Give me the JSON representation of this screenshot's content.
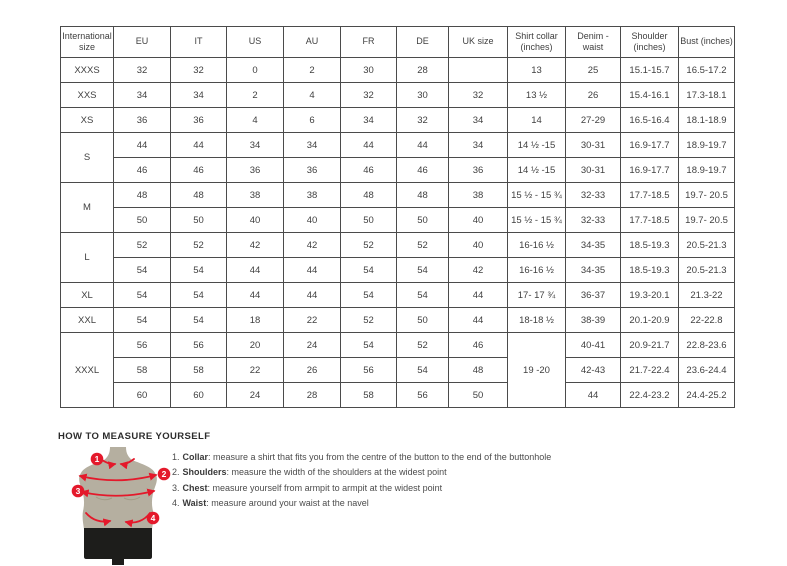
{
  "table": {
    "columns": [
      "International size",
      "EU",
      "IT",
      "US",
      "AU",
      "FR",
      "DE",
      "UK size",
      "Shirt collar (inches)",
      "Denim - waist",
      "Shoulder (inches)",
      "Bust (inches)"
    ],
    "rows": [
      [
        "XXXS",
        "32",
        "32",
        "0",
        "2",
        "30",
        "28",
        "",
        "13",
        "25",
        "15.1-15.7",
        "16.5-17.2"
      ],
      [
        "XXS",
        "34",
        "34",
        "2",
        "4",
        "32",
        "30",
        "32",
        "13 ½",
        "26",
        "15.4-16.1",
        "17.3-18.1"
      ],
      [
        "XS",
        "36",
        "36",
        "4",
        "6",
        "34",
        "32",
        "34",
        "14",
        "27-29",
        "16.5-16.4",
        "18.1-18.9"
      ],
      [
        {
          "t": "S",
          "rs": 2
        },
        "44",
        "44",
        "34",
        "34",
        "44",
        "44",
        "34",
        "14 ½ -15",
        "30-31",
        "16.9-17.7",
        "18.9-19.7"
      ],
      [
        "46",
        "46",
        "36",
        "36",
        "46",
        "46",
        "36",
        "14 ½ -15",
        "30-31",
        "16.9-17.7",
        "18.9-19.7"
      ],
      [
        {
          "t": "M",
          "rs": 2
        },
        "48",
        "48",
        "38",
        "38",
        "48",
        "48",
        "38",
        "15 ½ - 15 ¾",
        "32-33",
        "17.7-18.5",
        "19.7- 20.5"
      ],
      [
        "50",
        "50",
        "40",
        "40",
        "50",
        "50",
        "40",
        "15 ½ - 15 ¾",
        "32-33",
        "17.7-18.5",
        "19.7- 20.5"
      ],
      [
        {
          "t": "L",
          "rs": 2
        },
        "52",
        "52",
        "42",
        "42",
        "52",
        "52",
        "40",
        "16-16 ½",
        "34-35",
        "18.5-19.3",
        "20.5-21.3"
      ],
      [
        "54",
        "54",
        "44",
        "44",
        "54",
        "54",
        "42",
        "16-16 ½",
        "34-35",
        "18.5-19.3",
        "20.5-21.3"
      ],
      [
        "XL",
        "54",
        "54",
        "44",
        "44",
        "54",
        "54",
        "44",
        "17- 17 ¾",
        "36-37",
        "19.3-20.1",
        "21.3-22"
      ],
      [
        "XXL",
        "54",
        "54",
        "18",
        "22",
        "52",
        "50",
        "44",
        "18-18 ½",
        "38-39",
        "20.1-20.9",
        "22-22.8"
      ],
      [
        {
          "t": "XXXL",
          "rs": 3
        },
        "56",
        "56",
        "20",
        "24",
        "54",
        "52",
        "46",
        {
          "t": "19 -20",
          "rs": 3
        },
        "40-41",
        "20.9-21.7",
        "22.8-23.6"
      ],
      [
        "58",
        "58",
        "22",
        "26",
        "56",
        "54",
        "48",
        "42-43",
        "21.7-22.4",
        "23.6-24.4"
      ],
      [
        "60",
        "60",
        "24",
        "28",
        "58",
        "56",
        "50",
        "44",
        "22.4-23.2",
        "24.4-25.2"
      ]
    ]
  },
  "how_to_measure": {
    "heading": "HOW TO MEASURE YOURSELF",
    "items": [
      {
        "num": "1.",
        "label": "Collar",
        "text": ": measure a shirt that fits you from the centre of the button to the end of the buttonhole"
      },
      {
        "num": "2.",
        "label": "Shoulders",
        "text": ": measure the width of the shoulders at the widest point"
      },
      {
        "num": "3.",
        "label": "Chest",
        "text": ": measure yourself from armpit to armpit at the widest point"
      },
      {
        "num": "4.",
        "label": "Waist",
        "text": ": measure around your waist at the navel"
      }
    ],
    "badges": [
      "1",
      "2",
      "3",
      "4"
    ]
  },
  "colors": {
    "accent_red": "#e4192b",
    "torso": "#b5afa0",
    "shorts": "#1d1d1b",
    "table_border": "#4b4b4b",
    "text": "#3f3f3f"
  }
}
